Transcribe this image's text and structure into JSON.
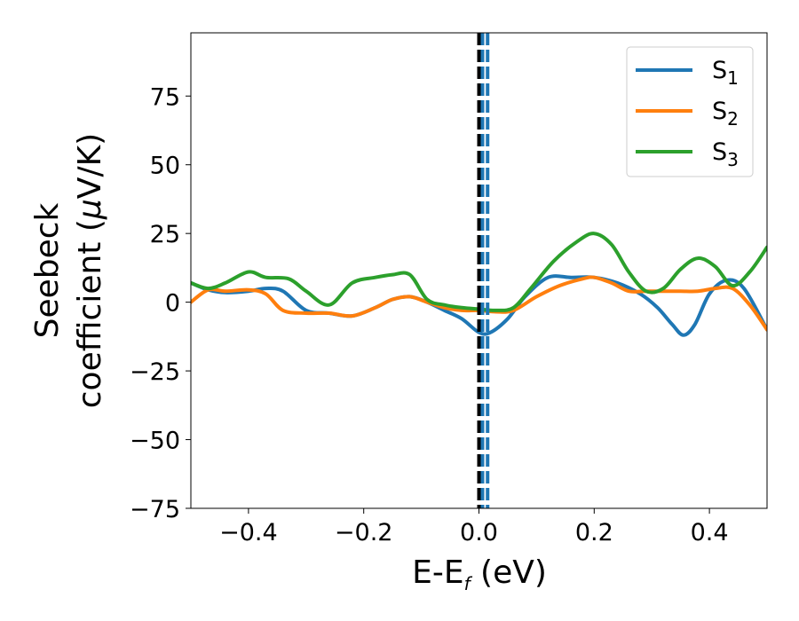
{
  "chart_data": {
    "type": "line",
    "xlabel_main": "E-E",
    "xlabel_sub": "f",
    "xlabel_unit": " (eV)",
    "ylabel_line1": "Seebeck",
    "ylabel_line2_text": "coefficient  (",
    "ylabel_line2_mu": "μ",
    "ylabel_line2_unit": "V/K)",
    "xlim": [
      -0.5,
      0.5
    ],
    "ylim": [
      -75,
      98
    ],
    "xticks": [
      -0.4,
      -0.2,
      0.0,
      0.2,
      0.4
    ],
    "xtick_labels": [
      "−0.4",
      "−0.2",
      "0.0",
      "0.2",
      "0.4"
    ],
    "yticks": [
      -75,
      -50,
      -25,
      0,
      25,
      50,
      75
    ],
    "ytick_labels": [
      "−75",
      "−50",
      "−25",
      "0",
      "25",
      "50",
      "75"
    ],
    "grid": false,
    "legend_position": "top-right",
    "vlines": [
      {
        "x": 0.0,
        "color": "#000000",
        "style": "dashed"
      },
      {
        "x": 0.0,
        "color": "#1f77b4",
        "style": "dashed"
      },
      {
        "x": 0.015,
        "color": "#1f77b4",
        "style": "dashed"
      }
    ],
    "series": [
      {
        "legend_main": "S",
        "legend_sub": "1",
        "color": "#1f77b4",
        "x": [
          -0.5,
          -0.47,
          -0.44,
          -0.4,
          -0.37,
          -0.34,
          -0.3,
          -0.26,
          -0.22,
          -0.18,
          -0.15,
          -0.12,
          -0.09,
          -0.06,
          -0.03,
          0.0,
          0.02,
          0.05,
          0.08,
          0.12,
          0.16,
          0.2,
          0.24,
          0.28,
          0.31,
          0.335,
          0.355,
          0.375,
          0.4,
          0.43,
          0.46,
          0.5
        ],
        "y": [
          7,
          4.5,
          3.5,
          4,
          5,
          4,
          -3,
          -4,
          -5,
          -2,
          1,
          2,
          0,
          -3,
          -6,
          -11,
          -11,
          -6,
          2,
          9,
          9,
          9,
          7,
          3,
          -2,
          -8,
          -12,
          -8,
          3,
          8,
          5,
          -10
        ]
      },
      {
        "legend_main": "S",
        "legend_sub": "2",
        "color": "#ff7f0e",
        "x": [
          -0.5,
          -0.47,
          -0.44,
          -0.4,
          -0.37,
          -0.34,
          -0.3,
          -0.26,
          -0.22,
          -0.18,
          -0.15,
          -0.12,
          -0.09,
          -0.06,
          -0.03,
          0.0,
          0.03,
          0.06,
          0.1,
          0.14,
          0.18,
          0.2,
          0.23,
          0.26,
          0.29,
          0.32,
          0.35,
          0.38,
          0.41,
          0.44,
          0.47,
          0.5
        ],
        "y": [
          0,
          4.5,
          4,
          4.5,
          3,
          -3,
          -4,
          -4,
          -5,
          -2,
          1,
          2,
          0,
          -2,
          -3,
          -3,
          -3.5,
          -3,
          2,
          6,
          8.5,
          9,
          7,
          4,
          4,
          4,
          4,
          4,
          5,
          5,
          -1,
          -10
        ]
      },
      {
        "legend_main": "S",
        "legend_sub": "3",
        "color": "#2ca02c",
        "x": [
          -0.5,
          -0.47,
          -0.44,
          -0.4,
          -0.37,
          -0.33,
          -0.3,
          -0.26,
          -0.22,
          -0.18,
          -0.15,
          -0.12,
          -0.09,
          -0.06,
          -0.03,
          0.0,
          0.03,
          0.06,
          0.09,
          0.13,
          0.17,
          0.2,
          0.23,
          0.26,
          0.29,
          0.32,
          0.35,
          0.38,
          0.41,
          0.44,
          0.47,
          0.5
        ],
        "y": [
          7,
          5,
          7,
          11,
          9,
          8.5,
          4,
          -1,
          7,
          9,
          10,
          10,
          1,
          -1,
          -2,
          -2.5,
          -3,
          -2,
          5,
          15,
          22,
          25,
          21,
          11,
          4,
          5,
          12,
          16,
          13,
          6,
          11,
          20
        ]
      }
    ]
  }
}
